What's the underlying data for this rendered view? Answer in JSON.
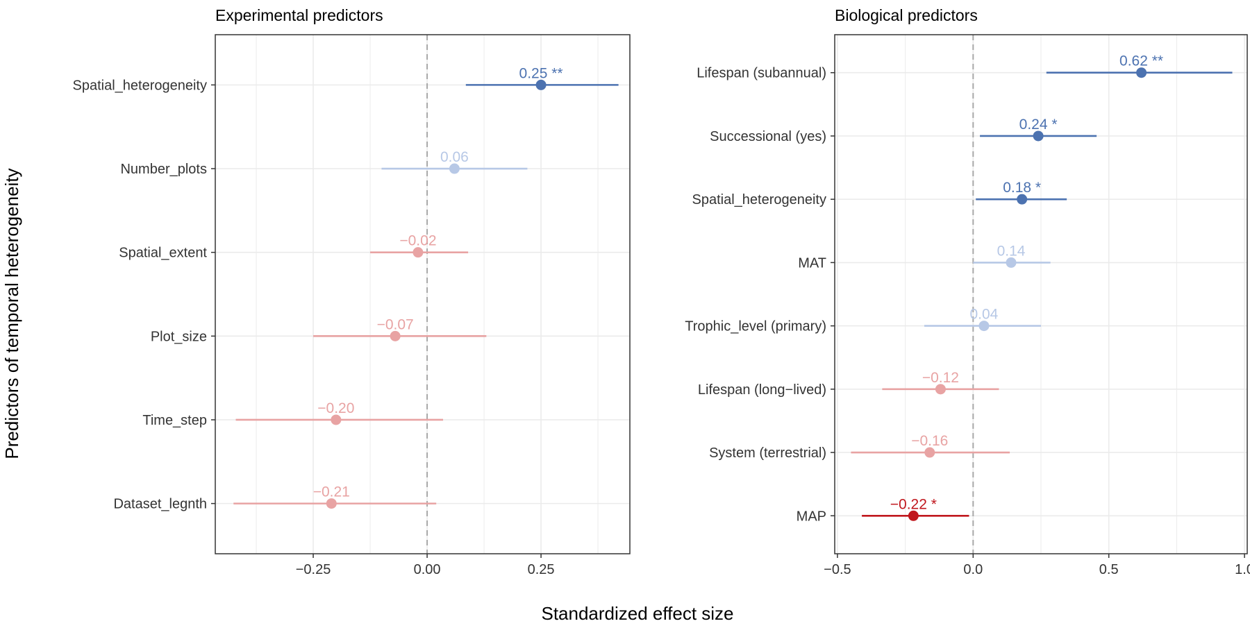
{
  "figure": {
    "y_title": "Predictors of temporal heterogeneity",
    "x_title": "Standardized effect size"
  },
  "colors": {
    "sig_positive": "#4c72b0",
    "nonsig_positive": "#b7c8e6",
    "nonsig_negative": "#e8a3a3",
    "sig_negative": "#c0171d",
    "zero_line": "#a8a8a8",
    "grid": "#ebebeb",
    "panel_border": "#333333"
  },
  "chart_data": [
    {
      "type": "forest",
      "title": "Experimental predictors",
      "xlabel": "Standardized effect size",
      "ylabel": "Predictors of temporal heterogeneity",
      "xlim": [
        -0.465,
        0.445
      ],
      "xticks": [
        -0.25,
        0,
        0.25
      ],
      "xtick_labels": [
        "−0.25",
        "0.00",
        "0.25"
      ],
      "grid": true,
      "points": [
        {
          "name": "Spatial_heterogeneity",
          "estimate": 0.25,
          "lower": 0.085,
          "upper": 0.42,
          "label": "0.25 **",
          "class": "sig_positive"
        },
        {
          "name": "Number_plots",
          "estimate": 0.06,
          "lower": -0.1,
          "upper": 0.22,
          "label": "0.06",
          "class": "nonsig_positive"
        },
        {
          "name": "Spatial_extent",
          "estimate": -0.02,
          "lower": -0.125,
          "upper": 0.09,
          "label": "−0.02",
          "class": "nonsig_negative"
        },
        {
          "name": "Plot_size",
          "estimate": -0.07,
          "lower": -0.25,
          "upper": 0.13,
          "label": "−0.07",
          "class": "nonsig_negative"
        },
        {
          "name": "Time_step",
          "estimate": -0.2,
          "lower": -0.42,
          "upper": 0.035,
          "label": "−0.20",
          "class": "nonsig_negative"
        },
        {
          "name": "Dataset_legnth",
          "estimate": -0.21,
          "lower": -0.425,
          "upper": 0.02,
          "label": "−0.21",
          "class": "nonsig_negative"
        }
      ]
    },
    {
      "type": "forest",
      "title": "Biological predictors",
      "xlabel": "Standardized effect size",
      "ylabel": "Predictors of temporal heterogeneity",
      "xlim": [
        -0.51,
        1.01
      ],
      "xticks": [
        -0.5,
        0,
        0.5,
        1.0
      ],
      "xtick_labels": [
        "−0.5",
        "0.0",
        "0.5",
        "1.0"
      ],
      "grid": true,
      "points": [
        {
          "name": "Lifespan (subannual)",
          "estimate": 0.62,
          "lower": 0.27,
          "upper": 0.955,
          "label": "0.62 **",
          "class": "sig_positive"
        },
        {
          "name": "Successional (yes)",
          "estimate": 0.24,
          "lower": 0.025,
          "upper": 0.455,
          "label": "0.24 *",
          "class": "sig_positive"
        },
        {
          "name": "Spatial_heterogeneity",
          "estimate": 0.18,
          "lower": 0.01,
          "upper": 0.345,
          "label": "0.18 *",
          "class": "sig_positive"
        },
        {
          "name": "MAT",
          "estimate": 0.14,
          "lower": 0.0,
          "upper": 0.285,
          "label": "0.14",
          "class": "nonsig_positive"
        },
        {
          "name": "Trophic_level (primary)",
          "estimate": 0.04,
          "lower": -0.18,
          "upper": 0.25,
          "label": "0.04",
          "class": "nonsig_positive"
        },
        {
          "name": "Lifespan (long−lived)",
          "estimate": -0.12,
          "lower": -0.335,
          "upper": 0.095,
          "label": "−0.12",
          "class": "nonsig_negative"
        },
        {
          "name": "System (terrestrial)",
          "estimate": -0.16,
          "lower": -0.45,
          "upper": 0.135,
          "label": "−0.16",
          "class": "nonsig_negative"
        },
        {
          "name": "MAP",
          "estimate": -0.22,
          "lower": -0.41,
          "upper": -0.015,
          "label": "−0.22 *",
          "class": "sig_negative"
        }
      ]
    }
  ]
}
